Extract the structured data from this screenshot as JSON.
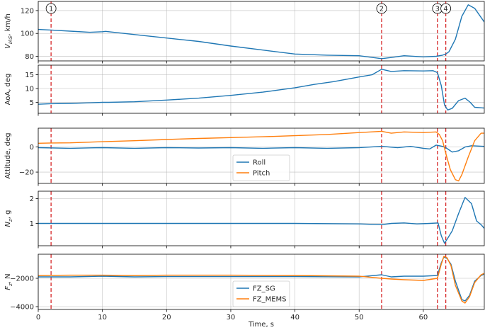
{
  "chart_data": {
    "type": "line",
    "shared_x": {
      "label": "Time, s",
      "range": [
        0,
        69.5
      ],
      "ticks": [
        0,
        10,
        20,
        30,
        40,
        50,
        60
      ],
      "tick_labels": [
        "0",
        "10",
        "20",
        "30",
        "40",
        "50",
        "60"
      ]
    },
    "grid": true,
    "event_markers": [
      {
        "label": "1",
        "x": 2.0
      },
      {
        "label": "2",
        "x": 53.5
      },
      {
        "label": "3",
        "x": 62.2
      },
      {
        "label": "4",
        "x": 63.5
      }
    ],
    "marker_color": "#d62728",
    "panels": [
      {
        "ylabel": "V_IAS, km/h",
        "ylim": [
          76,
          128
        ],
        "yticks": [
          80,
          100,
          120
        ],
        "ytick_labels": [
          "80",
          "100",
          "120"
        ],
        "legend": false,
        "series": [
          {
            "color": "#1f77b4",
            "x": [
              0,
              2,
              5,
              8,
              10,
              10.5,
              15,
              20,
              25,
              30,
              35,
              40,
              45,
              50,
              53.5,
              55,
              57,
              60,
              62,
              63,
              63.5,
              64,
              65,
              66,
              67,
              68,
              69.5
            ],
            "y": [
              103.5,
              103,
              102,
              101,
              101.5,
              101.8,
              99,
              96,
              93,
              89,
              85.5,
              82,
              81,
              80.5,
              78,
              79,
              80.5,
              79.5,
              80,
              81,
              82,
              84,
              95,
              115,
              125,
              122,
              110
            ]
          }
        ]
      },
      {
        "ylabel": "AoA, deg",
        "ylim": [
          1,
          18.5
        ],
        "yticks": [
          5,
          10,
          15
        ],
        "ytick_labels": [
          "5",
          "10",
          "15"
        ],
        "legend": false,
        "series": [
          {
            "color": "#1f77b4",
            "x": [
              0,
              2,
              5,
              8,
              10,
              11,
              15,
              20,
              25,
              30,
              35,
              40,
              43,
              46,
              50,
              52,
              53.5,
              55,
              57,
              60,
              61.5,
              62.2,
              62.8,
              63.3,
              63.8,
              64.5,
              65.5,
              66.5,
              67.3,
              68,
              69.5
            ],
            "y": [
              4.3,
              4.5,
              4.6,
              4.8,
              5.0,
              5.0,
              5.2,
              5.8,
              6.5,
              7.5,
              8.7,
              10.3,
              11.5,
              12.5,
              14.2,
              15.0,
              17.0,
              16.2,
              16.5,
              16.4,
              16.5,
              15.8,
              11.0,
              4.0,
              2.2,
              2.8,
              5.6,
              6.5,
              5.0,
              3.2,
              2.9
            ]
          }
        ]
      },
      {
        "ylabel": "Attitude, deg",
        "ylim": [
          -29,
          15
        ],
        "yticks": [
          -20,
          0
        ],
        "ytick_labels": [
          "−20",
          "0"
        ],
        "legend": true,
        "legend_loc": "lower-center",
        "series": [
          {
            "name": "Roll",
            "color": "#1f77b4",
            "x": [
              0,
              5,
              10,
              15,
              20,
              25,
              30,
              35,
              40,
              45,
              50,
              53.5,
              56,
              58,
              60,
              61,
              62,
              62.5,
              63,
              63.5,
              64.5,
              65.5,
              66.5,
              67.5,
              69.5
            ],
            "y": [
              -0.5,
              -1,
              -0.5,
              -1,
              -0.5,
              -0.8,
              -0.5,
              -1,
              -0.5,
              -1,
              -0.5,
              0.5,
              -0.5,
              0.5,
              -1,
              -1.5,
              1.5,
              1.0,
              0.5,
              -0.5,
              -4,
              -3,
              0,
              1,
              0.5
            ]
          },
          {
            "name": "Pitch",
            "color": "#ff7f0e",
            "x": [
              0,
              2,
              5,
              10,
              15,
              20,
              25,
              30,
              35,
              40,
              45,
              50,
              53.5,
              55,
              57,
              60,
              62,
              62.5,
              63,
              63.5,
              64.2,
              65,
              65.5,
              66,
              67,
              68,
              69,
              69.5
            ],
            "y": [
              3,
              3.2,
              3.3,
              4.2,
              5,
              6,
              6.8,
              7.5,
              8.2,
              9,
              10,
              11.5,
              12.5,
              11,
              12,
              11.5,
              12,
              10,
              5,
              -5,
              -18,
              -26,
              -27,
              -22,
              -8,
              5,
              11,
              11
            ]
          }
        ]
      },
      {
        "ylabel": "N_z, g",
        "ylim": [
          0.1,
          2.3
        ],
        "yticks": [
          1,
          2
        ],
        "ytick_labels": [
          "1",
          "2"
        ],
        "legend": false,
        "series": [
          {
            "color": "#1f77b4",
            "x": [
              0,
              2,
              10,
              20,
              30,
              40,
              50,
              53.5,
              55,
              57,
              59,
              61,
              62.3,
              62.8,
              63.3,
              63.8,
              64.5,
              65.5,
              66.5,
              67.5,
              68.3,
              69,
              69.5
            ],
            "y": [
              1.0,
              1.0,
              1.0,
              1.0,
              1.0,
              1.0,
              0.98,
              0.95,
              1.0,
              1.02,
              0.98,
              1.0,
              1.02,
              0.5,
              0.2,
              0.4,
              0.7,
              1.4,
              2.05,
              1.8,
              1.1,
              0.95,
              0.8
            ]
          }
        ]
      },
      {
        "ylabel": "F_z, N",
        "ylim": [
          -4200,
          -300
        ],
        "yticks": [
          -4000,
          -2000
        ],
        "ytick_labels": [
          "−4000",
          "−2000"
        ],
        "legend": true,
        "legend_loc": "lower-center",
        "series": [
          {
            "name": "FZ_SG",
            "color": "#1f77b4",
            "x": [
              0,
              5,
              10,
              15,
              20,
              30,
              40,
              50,
              53.5,
              55,
              57,
              60,
              62.2,
              62.8,
              63.2,
              63.7,
              64.3,
              65,
              66,
              66.5,
              67.2,
              68,
              69,
              69.5
            ],
            "y": [
              -1900,
              -1900,
              -1850,
              -1900,
              -1880,
              -1880,
              -1880,
              -1900,
              -1750,
              -1900,
              -1850,
              -1850,
              -1800,
              -900,
              -500,
              -600,
              -1000,
              -2200,
              -3500,
              -3600,
              -3200,
              -2200,
              -1800,
              -1700
            ]
          },
          {
            "name": "FZ_MEMS",
            "color": "#ff7f0e",
            "x": [
              0,
              5,
              10,
              15,
              20,
              30,
              40,
              50,
              53.5,
              55,
              57,
              60,
              62.2,
              62.8,
              63.2,
              63.7,
              64.3,
              65,
              66,
              66.5,
              67.2,
              68,
              69,
              69.5
            ],
            "y": [
              -1800,
              -1780,
              -1780,
              -1800,
              -1780,
              -1780,
              -1800,
              -1850,
              -2000,
              -2050,
              -2100,
              -2150,
              -2000,
              -1000,
              -450,
              -550,
              -1100,
              -2500,
              -3600,
              -3750,
              -3300,
              -2300,
              -1750,
              -1650
            ]
          }
        ]
      }
    ]
  }
}
